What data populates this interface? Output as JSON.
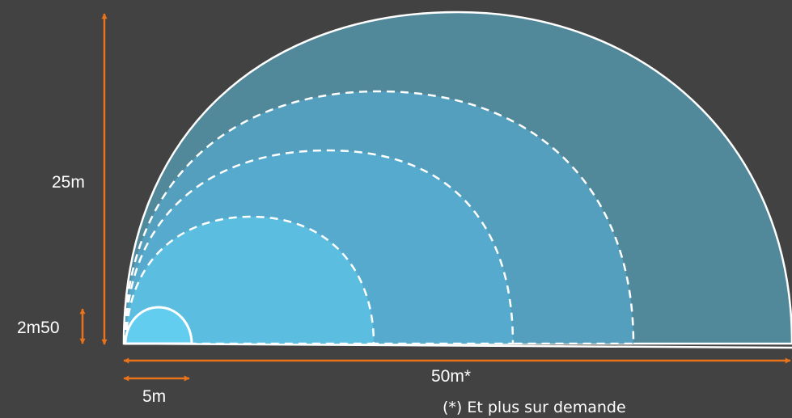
{
  "diagram": {
    "labels": {
      "height_large": "25m",
      "height_small": "2m50",
      "width_large": "50m*",
      "width_small": "5m",
      "footnote": "(*) Et plus sur demande"
    },
    "colors": {
      "background": "#424242",
      "dimension_arrow": "#e8731a",
      "dome_outer": "#51889a",
      "dome_ring_2": "#549fbd",
      "dome_ring_3": "#56aacd",
      "dome_ring_4": "#5bbde0",
      "dome_small": "#63cdf0",
      "outline": "#ffffff"
    }
  }
}
